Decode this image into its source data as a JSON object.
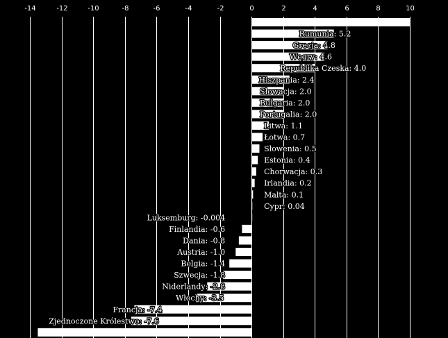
{
  "chart_data": {
    "type": "bar",
    "orientation": "horizontal",
    "title": "",
    "xlabel": "",
    "ylabel": "",
    "xlim": [
      -14,
      10
    ],
    "x_ticks": [
      -14,
      -12,
      -10,
      -8,
      -6,
      -4,
      -2,
      0,
      2,
      4,
      6,
      8,
      10
    ],
    "grid": true,
    "bar_color": "#ffffff",
    "background": "#000000",
    "bars": [
      {
        "value": 10,
        "label": ""
      },
      {
        "value": 5.2,
        "label": "Rumunia: 5.2"
      },
      {
        "value": 4.8,
        "label": "Grecja: 4.8"
      },
      {
        "value": 4.6,
        "label": "Węgry: 4.6"
      },
      {
        "value": 4.0,
        "label": "Republika Czeska: 4.0"
      },
      {
        "value": 2.4,
        "label": "Hiszpania: 2.4"
      },
      {
        "value": 2.0,
        "label": "Słowacja: 2.0"
      },
      {
        "value": 2.0,
        "label": "Bułgaria: 2.0"
      },
      {
        "value": 2.0,
        "label": "Portugalia: 2.0"
      },
      {
        "value": 1.1,
        "label": "Litwa: 1.1"
      },
      {
        "value": 0.7,
        "label": "Łotwa: 0.7"
      },
      {
        "value": 0.5,
        "label": "Słowenia: 0.5"
      },
      {
        "value": 0.4,
        "label": "Estonia: 0.4"
      },
      {
        "value": 0.3,
        "label": "Chorwacja: 0.3"
      },
      {
        "value": 0.2,
        "label": "Irlandia: 0.2"
      },
      {
        "value": 0.1,
        "label": "Malta: 0.1"
      },
      {
        "value": 0.04,
        "label": "Cypr: 0.04"
      },
      {
        "value": -0.004,
        "label": "Luksemburg: -0.004"
      },
      {
        "value": -0.6,
        "label": "Finlandia: -0.6"
      },
      {
        "value": -0.8,
        "label": "Dania: -0.8"
      },
      {
        "value": -1.0,
        "label": "Austria: -1.0"
      },
      {
        "value": -1.4,
        "label": "Belgia: -1.4"
      },
      {
        "value": -1.8,
        "label": "Szwecja: -1.8"
      },
      {
        "value": -2.8,
        "label": "Niderlandy: -2.8"
      },
      {
        "value": -3.5,
        "label": "Włochy: -3.5"
      },
      {
        "value": -7.4,
        "label": "Francja: -7.4"
      },
      {
        "value": -7.6,
        "label": "Zjednoczone Królestwo: -7.6"
      },
      {
        "value": -13.5,
        "label": ""
      }
    ]
  }
}
